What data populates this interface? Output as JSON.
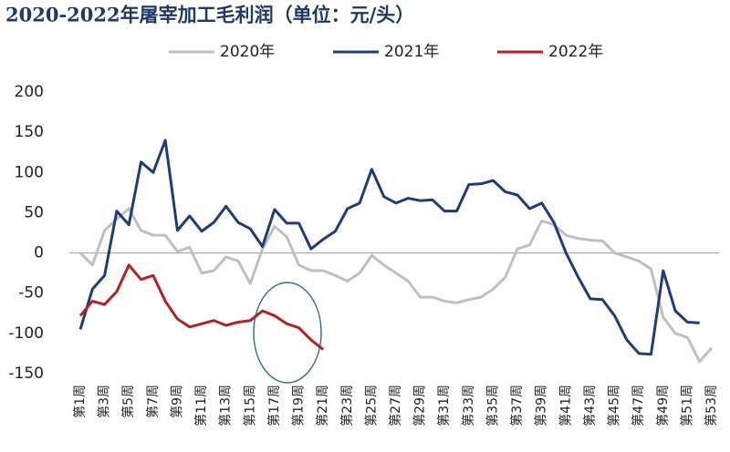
{
  "chart_data": {
    "type": "line",
    "title": "2020-2022年屠宰加工毛利润（单位：元/头）",
    "categories": [
      "第1周",
      null,
      "第3周",
      null,
      "第5周",
      null,
      "第7周",
      null,
      "第9周",
      null,
      "第11周",
      null,
      "第13周",
      null,
      "第15周",
      null,
      "第17周",
      null,
      "第19周",
      null,
      "第21周",
      null,
      "第23周",
      null,
      "第25周",
      null,
      "第27周",
      null,
      "第29周",
      null,
      "第31周",
      null,
      "第33周",
      null,
      "第35周",
      null,
      "第37周",
      null,
      "第39周",
      null,
      "第41周",
      null,
      "第43周",
      null,
      "第45周",
      null,
      "第47周",
      null,
      "第49周",
      null,
      "第51周",
      null,
      "第53周"
    ],
    "series": [
      {
        "name": "2020年",
        "color": "#bfbfbf",
        "values": [
          0,
          -15,
          28,
          42,
          55,
          28,
          22,
          22,
          2,
          7,
          -25,
          -22,
          -5,
          -10,
          -38,
          5,
          33,
          20,
          -15,
          -22,
          -22,
          -28,
          -35,
          -25,
          -3,
          -15,
          -25,
          -35,
          -55,
          -55,
          -60,
          -62,
          -58,
          -55,
          -45,
          -30,
          5,
          10,
          40,
          35,
          22,
          18,
          16,
          15,
          0,
          -5,
          -10,
          -20,
          -80,
          -100,
          -105,
          -135,
          -118
        ]
      },
      {
        "name": "2021年",
        "color": "#1f3c7a",
        "values": [
          -95,
          -45,
          -28,
          52,
          35,
          113,
          100,
          140,
          28,
          46,
          27,
          38,
          58,
          38,
          30,
          8,
          54,
          37,
          37,
          5,
          17,
          27,
          55,
          62,
          104,
          70,
          62,
          68,
          65,
          66,
          52,
          52,
          85,
          86,
          90,
          76,
          72,
          55,
          62,
          38,
          0,
          -30,
          -57,
          -58,
          -78,
          -108,
          -125,
          -126,
          -22,
          -72,
          -86,
          -87,
          null
        ]
      },
      {
        "name": "2022年",
        "color": "#b22222",
        "values": [
          -78,
          -60,
          -64,
          -48,
          -15,
          -33,
          -28,
          -60,
          -82,
          -92,
          -88,
          -84,
          -90,
          -86,
          -84,
          -72,
          -78,
          -88,
          -93,
          -108,
          -120,
          null,
          null,
          null,
          null,
          null,
          null,
          null,
          null,
          null,
          null,
          null,
          null,
          null,
          null,
          null,
          null,
          null,
          null,
          null,
          null,
          null,
          null,
          null,
          null,
          null,
          null,
          null,
          null,
          null,
          null,
          null,
          null
        ]
      }
    ],
    "ylim": [
      -150,
      200
    ],
    "yticks": [
      -150,
      -100,
      -50,
      0,
      50,
      100,
      150,
      200
    ]
  }
}
